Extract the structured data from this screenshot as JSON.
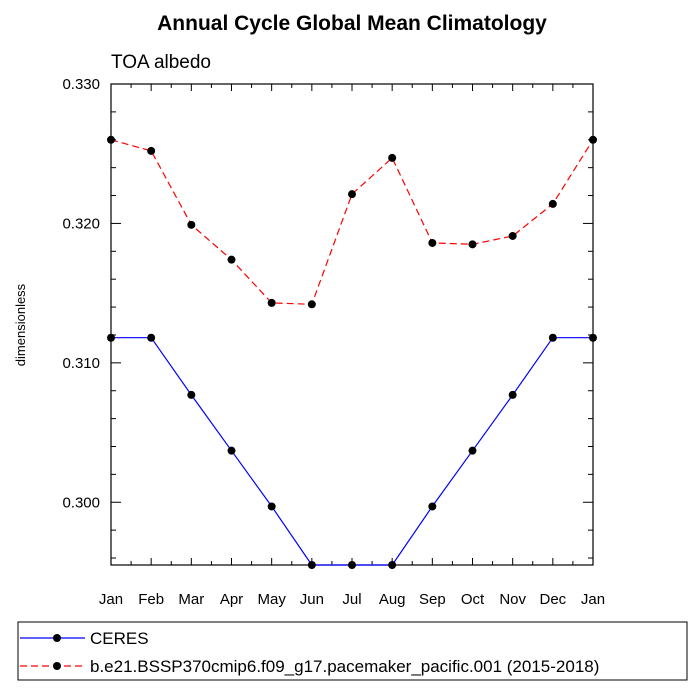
{
  "chart_data": {
    "type": "line",
    "title": "Annual Cycle Global Mean Climatology",
    "subtitle": "TOA albedo",
    "xlabel": "",
    "ylabel": "dimensionless",
    "categories": [
      "Jan",
      "Feb",
      "Mar",
      "Apr",
      "May",
      "Jun",
      "Jul",
      "Aug",
      "Sep",
      "Oct",
      "Nov",
      "Dec",
      "Jan"
    ],
    "ylim": [
      0.2955,
      0.33
    ],
    "yticks": [
      0.3,
      0.31,
      0.32,
      0.33
    ],
    "ytick_labels": [
      "0.300",
      "0.310",
      "0.320",
      "0.330"
    ],
    "grid": false,
    "legend_position": "bottom",
    "series": [
      {
        "name": "CERES",
        "color": "#0000ff",
        "line_style": "solid",
        "marker": "filled-circle",
        "values": [
          0.3118,
          0.3118,
          0.3077,
          0.3037,
          0.2997,
          0.2955,
          0.2955,
          0.2955,
          0.2997,
          0.3037,
          0.3077,
          0.3118,
          0.3118
        ]
      },
      {
        "name": "b.e21.BSSP370cmip6.f09_g17.pacemaker_pacific.001 (2015-2018)",
        "color": "#ff0000",
        "line_style": "dashed",
        "marker": "filled-circle",
        "values": [
          0.326,
          0.3252,
          0.3199,
          0.3174,
          0.3143,
          0.3142,
          0.3221,
          0.3247,
          0.3186,
          0.3185,
          0.3191,
          0.3214,
          0.326
        ]
      }
    ]
  }
}
